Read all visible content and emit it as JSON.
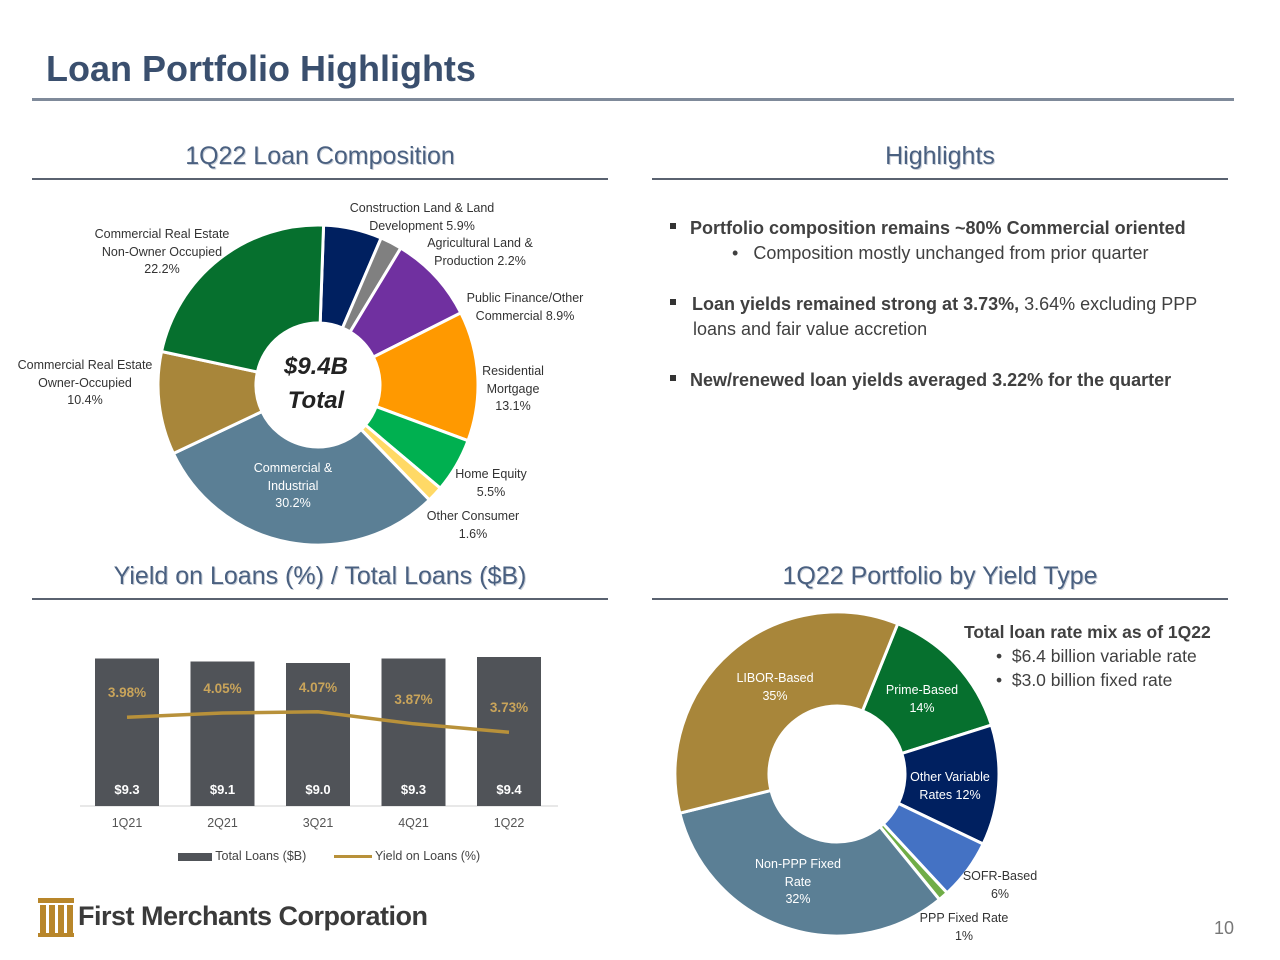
{
  "page_title": "Loan Portfolio Highlights",
  "page_number": "10",
  "logo": {
    "text": "First Merchants Corporation",
    "icon": "building-columns-icon",
    "color": "#b8862a"
  },
  "sections": {
    "loan_composition": "1Q22 Loan Composition",
    "highlights": "Highlights",
    "yield_chart": "Yield on Loans (%) / Total Loans ($B)",
    "yield_type": "1Q22 Portfolio by Yield Type"
  },
  "highlights": [
    {
      "bold": "Portfolio composition remains ~80% Commercial oriented",
      "rest": "",
      "sub": "Composition mostly unchanged from prior quarter"
    },
    {
      "bold": "Loan yields remained strong at 3.73%,",
      "rest": " 3.64% excluding PPP loans and fair value accretion",
      "sub": ""
    },
    {
      "bold": "New/renewed loan yields averaged 3.22% for the quarter",
      "rest": "",
      "sub": ""
    }
  ],
  "yield_type_notes": {
    "title": "Total loan rate mix as of 1Q22",
    "items": [
      "$6.4 billion variable rate",
      "$3.0 billion fixed rate"
    ]
  },
  "chart_data": [
    {
      "type": "pie",
      "title": "1Q22 Loan Composition",
      "center_label": [
        "$9.4B",
        "Total"
      ],
      "slices": [
        {
          "name": "Construction Land & Land Development",
          "label_lines": [
            "Construction Land & Land",
            "Development 5.9%"
          ],
          "value": 5.9,
          "color": "#002060"
        },
        {
          "name": "Agricultural Land & Production",
          "label_lines": [
            "Agricultural Land &",
            "Production 2.2%"
          ],
          "value": 2.2,
          "color": "#808080"
        },
        {
          "name": "Public Finance/Other Commercial",
          "label_lines": [
            "Public Finance/Other",
            "Commercial 8.9%"
          ],
          "value": 8.9,
          "color": "#7030a0"
        },
        {
          "name": "Residential Mortgage",
          "label_lines": [
            "Residential",
            "Mortgage",
            "13.1%"
          ],
          "value": 13.1,
          "color": "#ff9900"
        },
        {
          "name": "Home Equity",
          "label_lines": [
            "Home Equity",
            "5.5%"
          ],
          "value": 5.5,
          "color": "#00b050"
        },
        {
          "name": "Other Consumer",
          "label_lines": [
            "Other Consumer",
            "1.6%"
          ],
          "value": 1.6,
          "color": "#ffd966"
        },
        {
          "name": "Commercial & Industrial",
          "label_lines": [
            "Commercial &",
            "Industrial",
            "30.2%"
          ],
          "value": 30.2,
          "color": "#5b7f95"
        },
        {
          "name": "Commercial Real Estate Owner-Occupied",
          "label_lines": [
            "Commercial Real Estate",
            "Owner-Occupied",
            "10.4%"
          ],
          "value": 10.4,
          "color": "#a8863a"
        },
        {
          "name": "Commercial Real Estate Non-Owner Occupied",
          "label_lines": [
            "Commercial Real Estate",
            "Non-Owner Occupied",
            "22.2%"
          ],
          "value": 22.2,
          "color": "#06702e"
        }
      ]
    },
    {
      "type": "bar",
      "title": "Yield on Loans (%) / Total Loans ($B)",
      "categories": [
        "1Q21",
        "2Q21",
        "3Q21",
        "4Q21",
        "1Q22"
      ],
      "series": [
        {
          "name": "Total Loans ($B)",
          "type": "bar",
          "values": [
            9.3,
            9.1,
            9.0,
            9.3,
            9.4
          ],
          "labels": [
            "$9.3",
            "$9.1",
            "$9.0",
            "$9.3",
            "$9.4"
          ],
          "color": "#505358"
        },
        {
          "name": "Yield on Loans (%)",
          "type": "line",
          "values": [
            3.98,
            4.05,
            4.07,
            3.87,
            3.73
          ],
          "labels": [
            "3.98%",
            "4.05%",
            "4.07%",
            "3.87%",
            "3.73%"
          ],
          "color": "#b8913a"
        }
      ],
      "legend_position": "bottom"
    },
    {
      "type": "pie",
      "title": "1Q22 Portfolio by Yield Type",
      "slices": [
        {
          "name": "Prime-Based",
          "label_lines": [
            "Prime-Based",
            "14%"
          ],
          "value": 14,
          "color": "#06702e"
        },
        {
          "name": "Other Variable Rates",
          "label_lines": [
            "Other Variable",
            "Rates 12%"
          ],
          "value": 12,
          "color": "#002060"
        },
        {
          "name": "SOFR-Based",
          "label_lines": [
            "SOFR-Based",
            "6%"
          ],
          "value": 6,
          "color": "#4472c4"
        },
        {
          "name": "PPP Fixed Rate",
          "label_lines": [
            "PPP Fixed Rate",
            "1%"
          ],
          "value": 1,
          "color": "#70ad47"
        },
        {
          "name": "Non-PPP Fixed Rate",
          "label_lines": [
            "Non-PPP Fixed",
            "Rate",
            "32%"
          ],
          "value": 32,
          "color": "#5b7f95"
        },
        {
          "name": "LIBOR-Based",
          "label_lines": [
            "LIBOR-Based",
            "35%"
          ],
          "value": 35,
          "color": "#a8863a"
        }
      ]
    }
  ]
}
